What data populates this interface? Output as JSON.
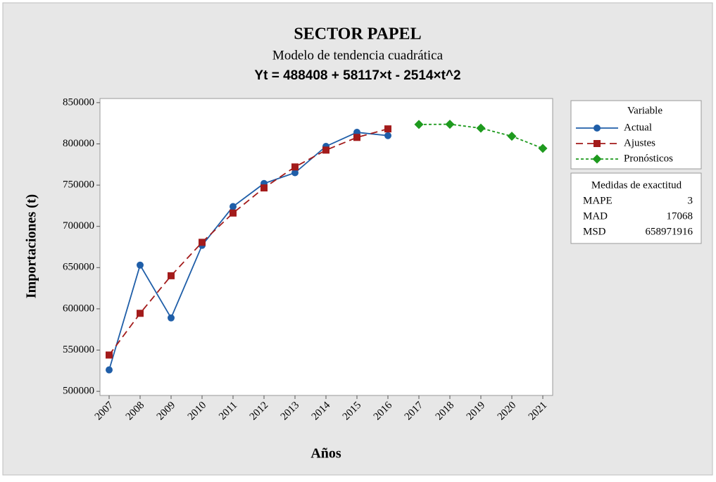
{
  "chart_data": {
    "type": "line",
    "title": "SECTOR PAPEL",
    "subtitle": "Modelo de tendencia cuadrática",
    "equation": "Yt = 488408 + 58117×t - 2514×t^2",
    "xlabel": "Años",
    "ylabel": "Importaciones (t)",
    "categories": [
      "2007",
      "2008",
      "2009",
      "2010",
      "2011",
      "2012",
      "2013",
      "2014",
      "2015",
      "2016",
      "2017",
      "2018",
      "2019",
      "2020",
      "2021"
    ],
    "ylim": [
      495000,
      855000
    ],
    "yticks": [
      500000,
      550000,
      600000,
      650000,
      700000,
      750000,
      800000,
      850000
    ],
    "legend_title": "Variable",
    "series": [
      {
        "name": "Actual",
        "color": "#1f5ea8",
        "marker": "circle",
        "dash": "none",
        "values": [
          526000,
          653000,
          589000,
          677000,
          724000,
          752000,
          765000,
          797000,
          814000,
          810000,
          null,
          null,
          null,
          null,
          null
        ]
      },
      {
        "name": "Ajustes",
        "color": "#a31b1b",
        "marker": "square",
        "dash": "10 6",
        "values": [
          544011,
          594586,
          640133,
          680652,
          716143,
          746606,
          772041,
          792448,
          807827,
          818178,
          null,
          null,
          null,
          null,
          null
        ]
      },
      {
        "name": "Pronósticos",
        "color": "#1e9a1e",
        "marker": "diamond",
        "dash": "4 3",
        "values": [
          null,
          null,
          null,
          null,
          null,
          null,
          null,
          null,
          null,
          null,
          823501,
          823796,
          819063,
          809302,
          794513
        ]
      }
    ],
    "accuracy": {
      "title": "Medidas de exactitud",
      "rows": [
        {
          "label": "MAPE",
          "value": "3"
        },
        {
          "label": "MAD",
          "value": "17068"
        },
        {
          "label": "MSD",
          "value": "658971916"
        }
      ]
    }
  }
}
